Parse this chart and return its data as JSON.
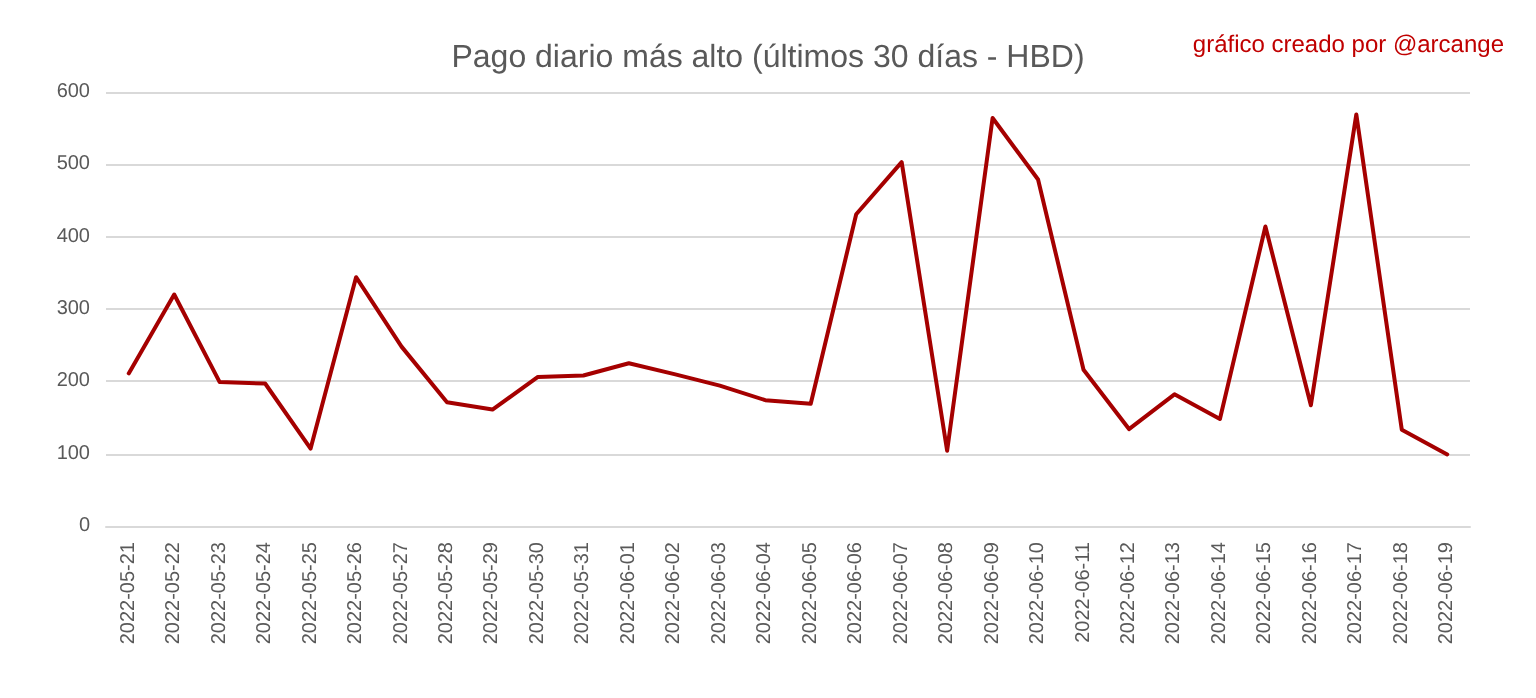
{
  "chart_data": {
    "type": "line",
    "title": "Pago diario más alto (últimos 30 días - HBD)",
    "annotations": [
      "gráfico creado por @arcange"
    ],
    "categories": [
      "2022-05-21",
      "2022-05-22",
      "2022-05-23",
      "2022-05-24",
      "2022-05-25",
      "2022-05-26",
      "2022-05-27",
      "2022-05-28",
      "2022-05-29",
      "2022-05-30",
      "2022-05-31",
      "2022-06-01",
      "2022-06-02",
      "2022-06-03",
      "2022-06-04",
      "2022-06-05",
      "2022-06-06",
      "2022-06-07",
      "2022-06-08",
      "2022-06-09",
      "2022-06-10",
      "2022-06-11",
      "2022-06-12",
      "2022-06-13",
      "2022-06-14",
      "2022-06-15",
      "2022-06-16",
      "2022-06-17",
      "2022-06-18",
      "2022-06-19"
    ],
    "series": [
      {
        "color": "#a50000",
        "values": [
          211,
          320,
          199,
          197,
          107,
          344,
          248,
          171,
          161,
          206,
          208,
          225,
          210,
          194,
          174,
          169,
          431,
          503,
          104,
          564,
          479,
          216,
          134,
          182,
          148,
          414,
          167,
          569,
          133,
          99
        ]
      }
    ],
    "ylim": [
      0,
      600
    ],
    "yticks": [
      0,
      100,
      200,
      300,
      400,
      500,
      600
    ],
    "grid": "y",
    "marker": "none",
    "line_style": "solid"
  }
}
